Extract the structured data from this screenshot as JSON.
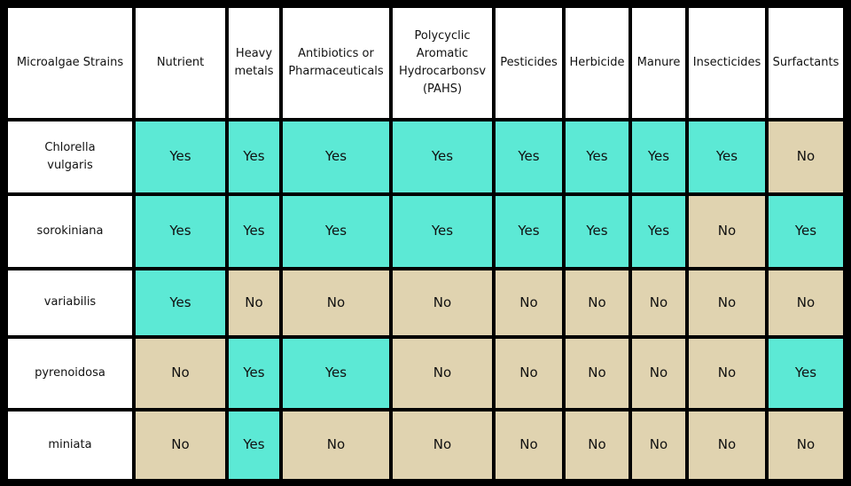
{
  "table": {
    "header": [
      "Microalgae Strains",
      "Nutrient",
      "Heavy metals",
      "Antibiotics or Pharmaceuticals",
      "Polycyclic Aromatic Hydrocarbonsv (PAHS)",
      "Pesticides",
      "Herbicide",
      "Manure",
      "Insecticides",
      "Surfactants"
    ],
    "rows": [
      [
        "Chlorella vulgaris",
        "Yes",
        "Yes",
        "Yes",
        "Yes",
        "Yes",
        "Yes",
        "Yes",
        "Yes",
        "No"
      ],
      [
        "sorokiniana",
        "Yes",
        "Yes",
        "Yes",
        "Yes",
        "Yes",
        "Yes",
        "Yes",
        "No",
        "Yes"
      ],
      [
        "variabilis",
        "Yes",
        "No",
        "No",
        "No",
        "No",
        "No",
        "No",
        "No",
        "No"
      ],
      [
        "pyrenoidosa",
        "No",
        "Yes",
        "Yes",
        "No",
        "No",
        "No",
        "No",
        "No",
        "Yes"
      ],
      [
        "miniata",
        "No",
        "Yes",
        "No",
        "No",
        "No",
        "No",
        "No",
        "No",
        "No"
      ]
    ],
    "colors": {
      "Yes": "#5ce9d5",
      "No": "#e0d3b0"
    }
  }
}
